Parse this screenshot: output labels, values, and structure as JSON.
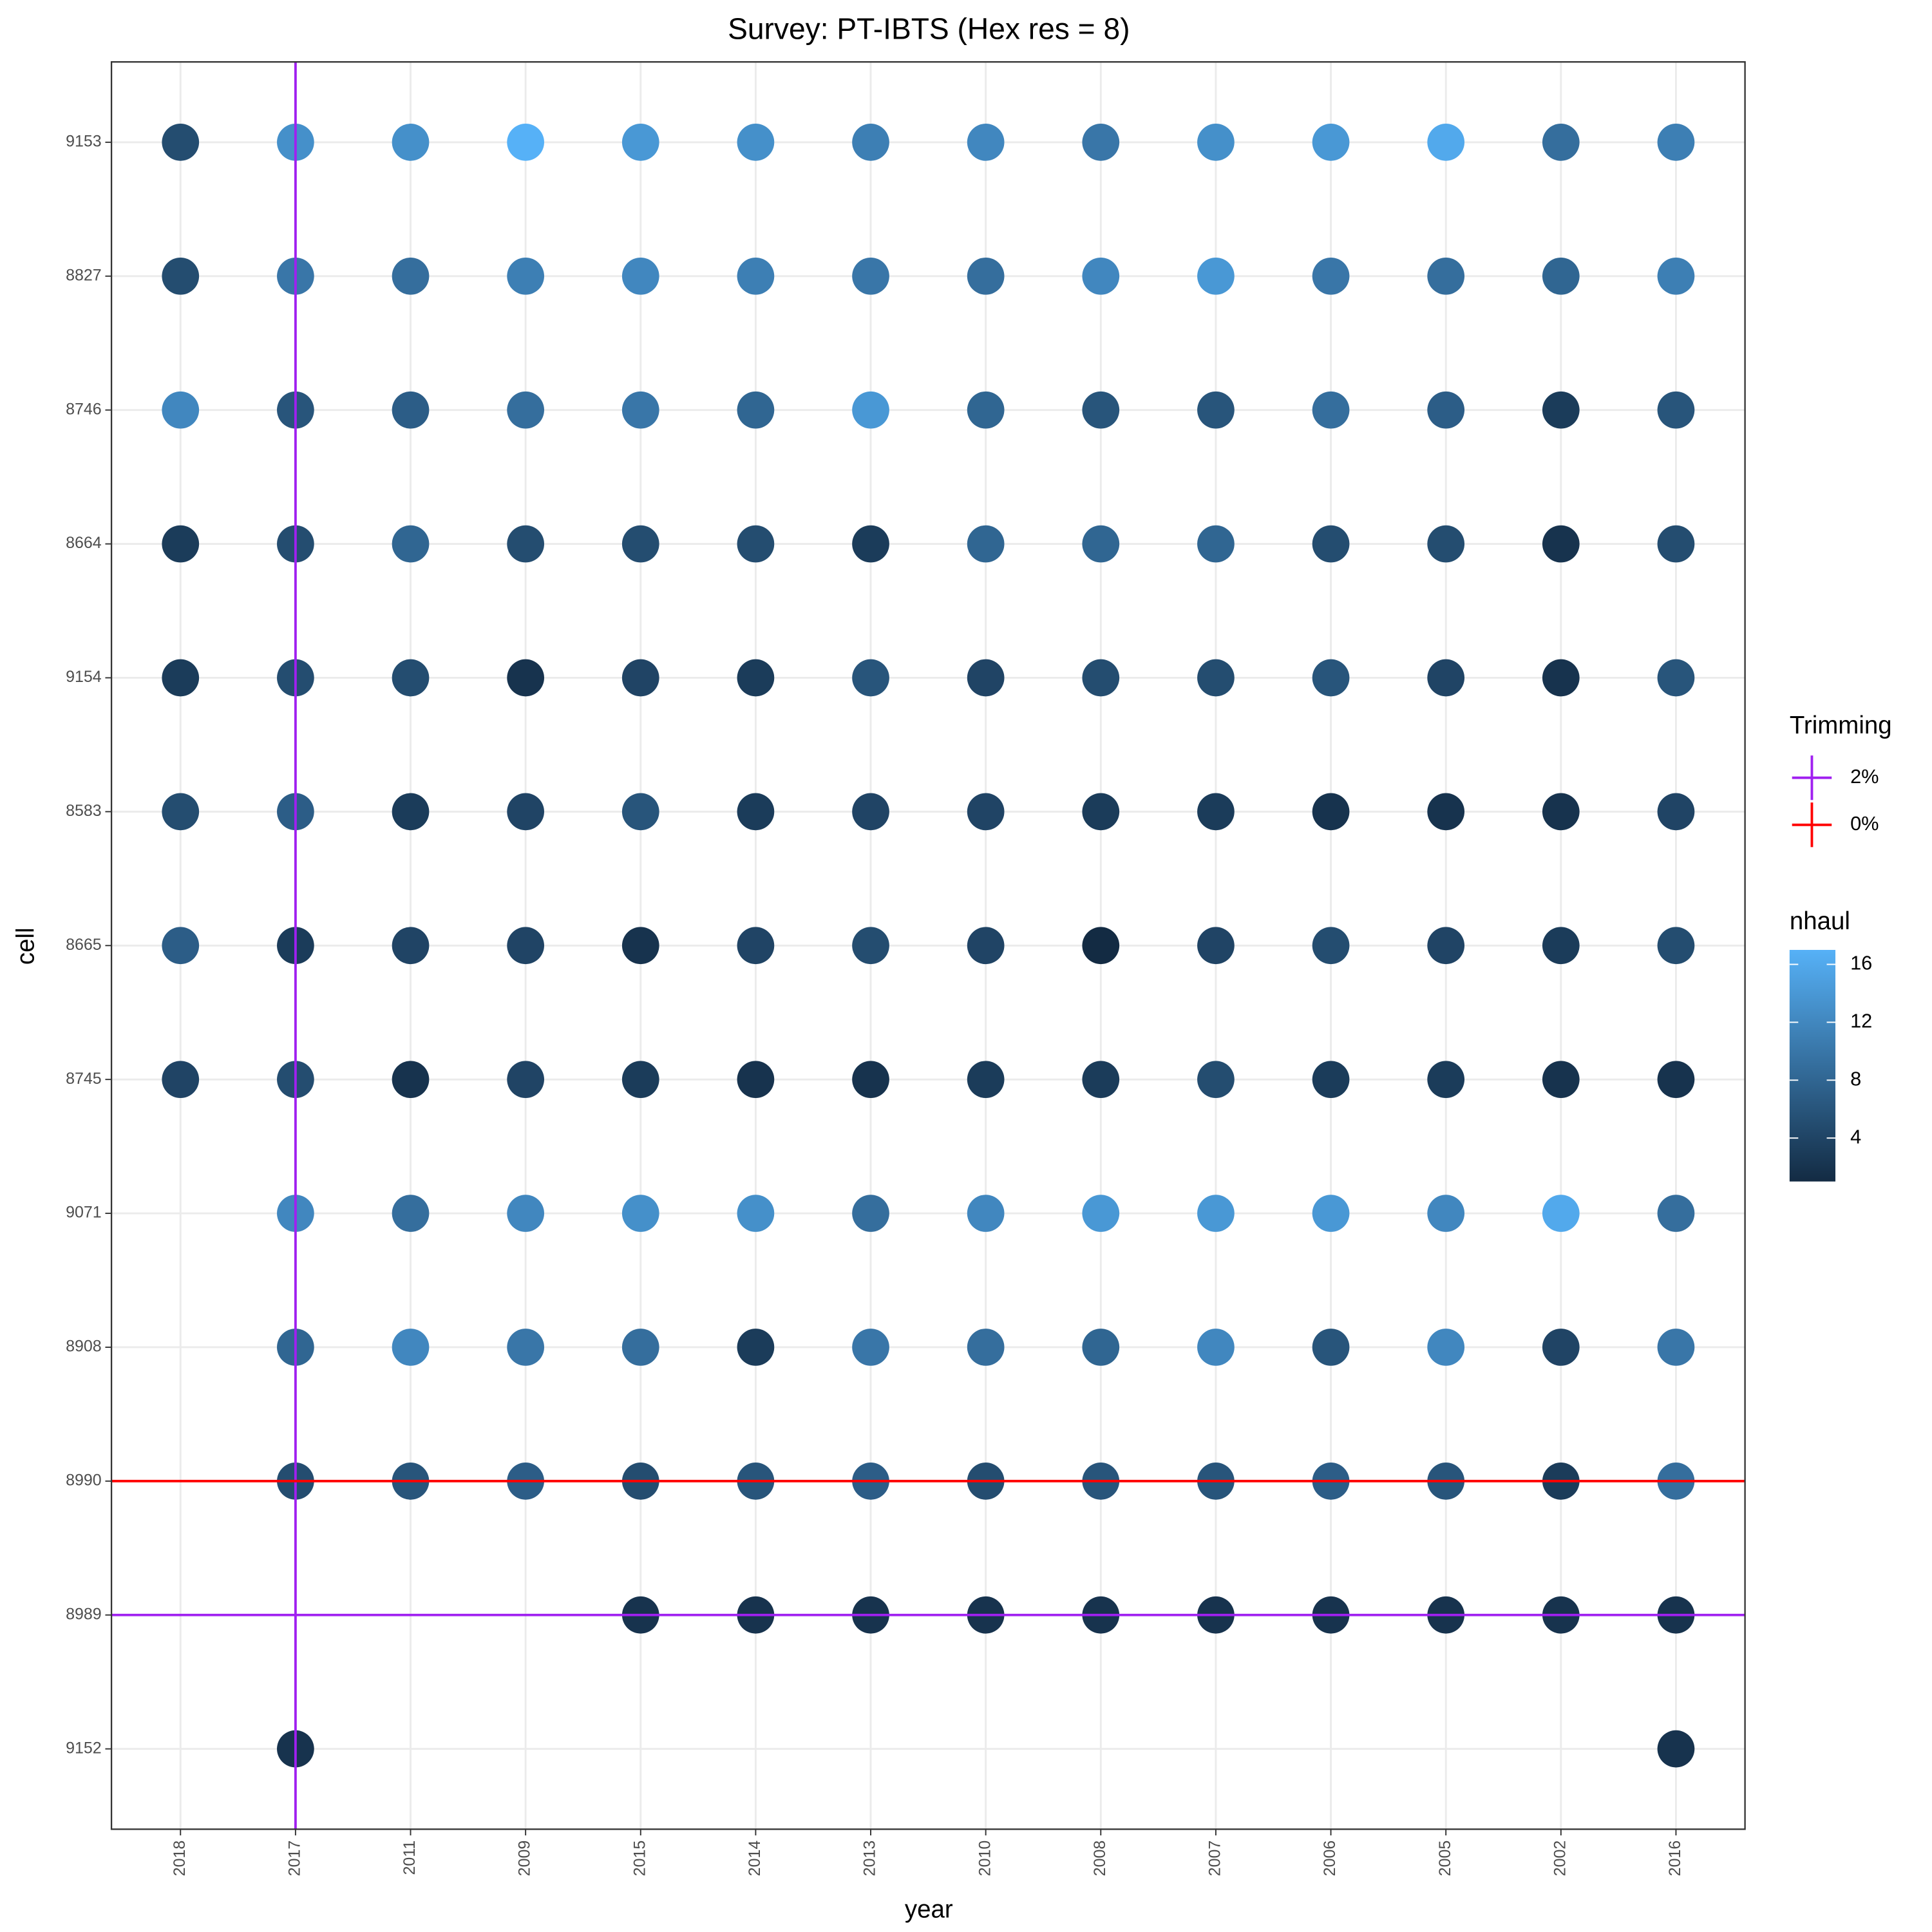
{
  "chart_data": {
    "type": "scatter",
    "title": "Survey: PT-IBTS (Hex res = 8)",
    "x_label": "year",
    "y_label": "cell",
    "categories": [
      "2018",
      "2017",
      "2011",
      "2009",
      "2015",
      "2014",
      "2013",
      "2010",
      "2008",
      "2007",
      "2006",
      "2005",
      "2002",
      "2016"
    ],
    "y_categories": [
      "9153",
      "8827",
      "8746",
      "8664",
      "9154",
      "8583",
      "8665",
      "8745",
      "9071",
      "8908",
      "8990",
      "8989",
      "9152"
    ],
    "values": [
      [
        5,
        13,
        13,
        17,
        14,
        13,
        11,
        12,
        10,
        13,
        14,
        16,
        9,
        11
      ],
      [
        5,
        10,
        9,
        11,
        12,
        11,
        10,
        9,
        12,
        14,
        10,
        9,
        8,
        11
      ],
      [
        12,
        6,
        7,
        9,
        10,
        8,
        14,
        8,
        6,
        6,
        9,
        7,
        3,
        6
      ],
      [
        3,
        5,
        8,
        5,
        5,
        5,
        3,
        8,
        8,
        8,
        5,
        5,
        2,
        5
      ],
      [
        3,
        5,
        5,
        2,
        4,
        3,
        6,
        4,
        5,
        5,
        6,
        4,
        2,
        6
      ],
      [
        5,
        7,
        3,
        4,
        6,
        3,
        4,
        4,
        3,
        3,
        2,
        2,
        2,
        4
      ],
      [
        7,
        3,
        4,
        4,
        2,
        4,
        5,
        4,
        1,
        4,
        5,
        4,
        3,
        5
      ],
      [
        4,
        5,
        2,
        4,
        3,
        2,
        2,
        3,
        3,
        5,
        3,
        3,
        2,
        2
      ],
      [
        null,
        12,
        9,
        12,
        13,
        13,
        9,
        12,
        14,
        14,
        14,
        12,
        16,
        9
      ],
      [
        null,
        8,
        12,
        10,
        9,
        3,
        10,
        9,
        8,
        12,
        6,
        12,
        4,
        10
      ],
      [
        null,
        5,
        6,
        7,
        5,
        6,
        7,
        5,
        6,
        6,
        7,
        6,
        3,
        9
      ],
      [
        null,
        null,
        null,
        null,
        2,
        2,
        2,
        2,
        2,
        2,
        2,
        2,
        2,
        2
      ],
      [
        null,
        2,
        null,
        null,
        null,
        null,
        null,
        null,
        null,
        null,
        null,
        null,
        null,
        2
      ]
    ],
    "color_scale": {
      "name": "nhaul",
      "lim": [
        1,
        17
      ],
      "ticks": [
        4,
        8,
        12,
        16
      ],
      "low": "#132B43",
      "high": "#56B1F7"
    },
    "reference_legend_title": "Trimming",
    "reference_lines": [
      {
        "name": "2%",
        "color": "#a020f0",
        "x": "2017",
        "y": "8989"
      },
      {
        "name": "0%",
        "color": "#ff0000",
        "y": "8990"
      }
    ],
    "grid": true
  }
}
